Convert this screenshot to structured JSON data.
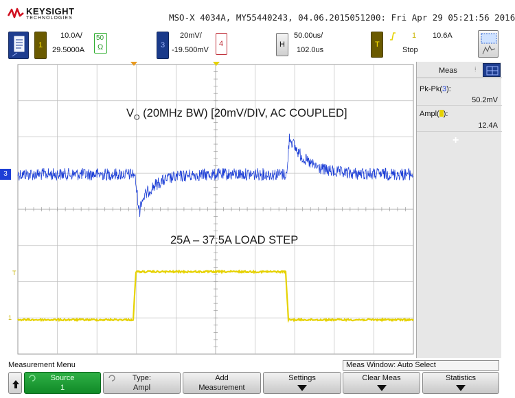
{
  "brand": {
    "name": "KEYSIGHT",
    "sub": "TECHNOLOGIES"
  },
  "info_line": "MSO-X 4034A, MY55440243, 04.06.2015051200: Fri Apr 29 05:21:56 2016",
  "channels": {
    "ch1": {
      "number": "1",
      "scale": "10.0A/",
      "offset": "29.5000A",
      "impedance": "50",
      "ohm": "Ω",
      "color": "#e6d200"
    },
    "ch3": {
      "number": "3",
      "scale": "20mV/",
      "offset": "-19.500mV",
      "color": "#1a3a8a"
    },
    "ch4": {
      "number": "4",
      "color": "#c0303a"
    },
    "horizontal": {
      "key": "H",
      "timebase": "50.00us/",
      "delay": "102.0us"
    },
    "trigger": {
      "key": "T",
      "source": "1",
      "level": "10.6A",
      "mode": "Stop"
    }
  },
  "annotations": {
    "vo_main": "V",
    "vo_sub": "O",
    "vo_rest": " (20MHz BW) [20mV/DIV, AC COUPLED]",
    "load": "25A – 37.5A LOAD STEP"
  },
  "markers": {
    "ch3": "3",
    "trig": "T",
    "ch1": "1"
  },
  "meas_panel": {
    "title": "Meas",
    "m1_label": "Pk-Pk(",
    "m1_src": "3",
    "m1_close": "):",
    "m1_value": "50.2mV",
    "m2_label": "Ampl(",
    "m2_close": "):",
    "m2_value": "12.4A",
    "add": "+"
  },
  "menu": {
    "title": "Measurement Menu",
    "window": "Meas Window: Auto Select",
    "keys": {
      "source": {
        "l1": "Source",
        "l2": "1"
      },
      "type": {
        "l1": "Type:",
        "l2": "Ampl"
      },
      "add": {
        "l1": "Add",
        "l2": "Measurement"
      },
      "settings": {
        "l1": "Settings"
      },
      "clear": {
        "l1": "Clear Meas"
      },
      "statistics": {
        "l1": "Statistics"
      }
    }
  },
  "colors": {
    "blue_trace": "#1d3fd6",
    "yellow_trace": "#e6d200",
    "grid": "#bdbdbd",
    "panel": "#e7e7e7"
  }
}
